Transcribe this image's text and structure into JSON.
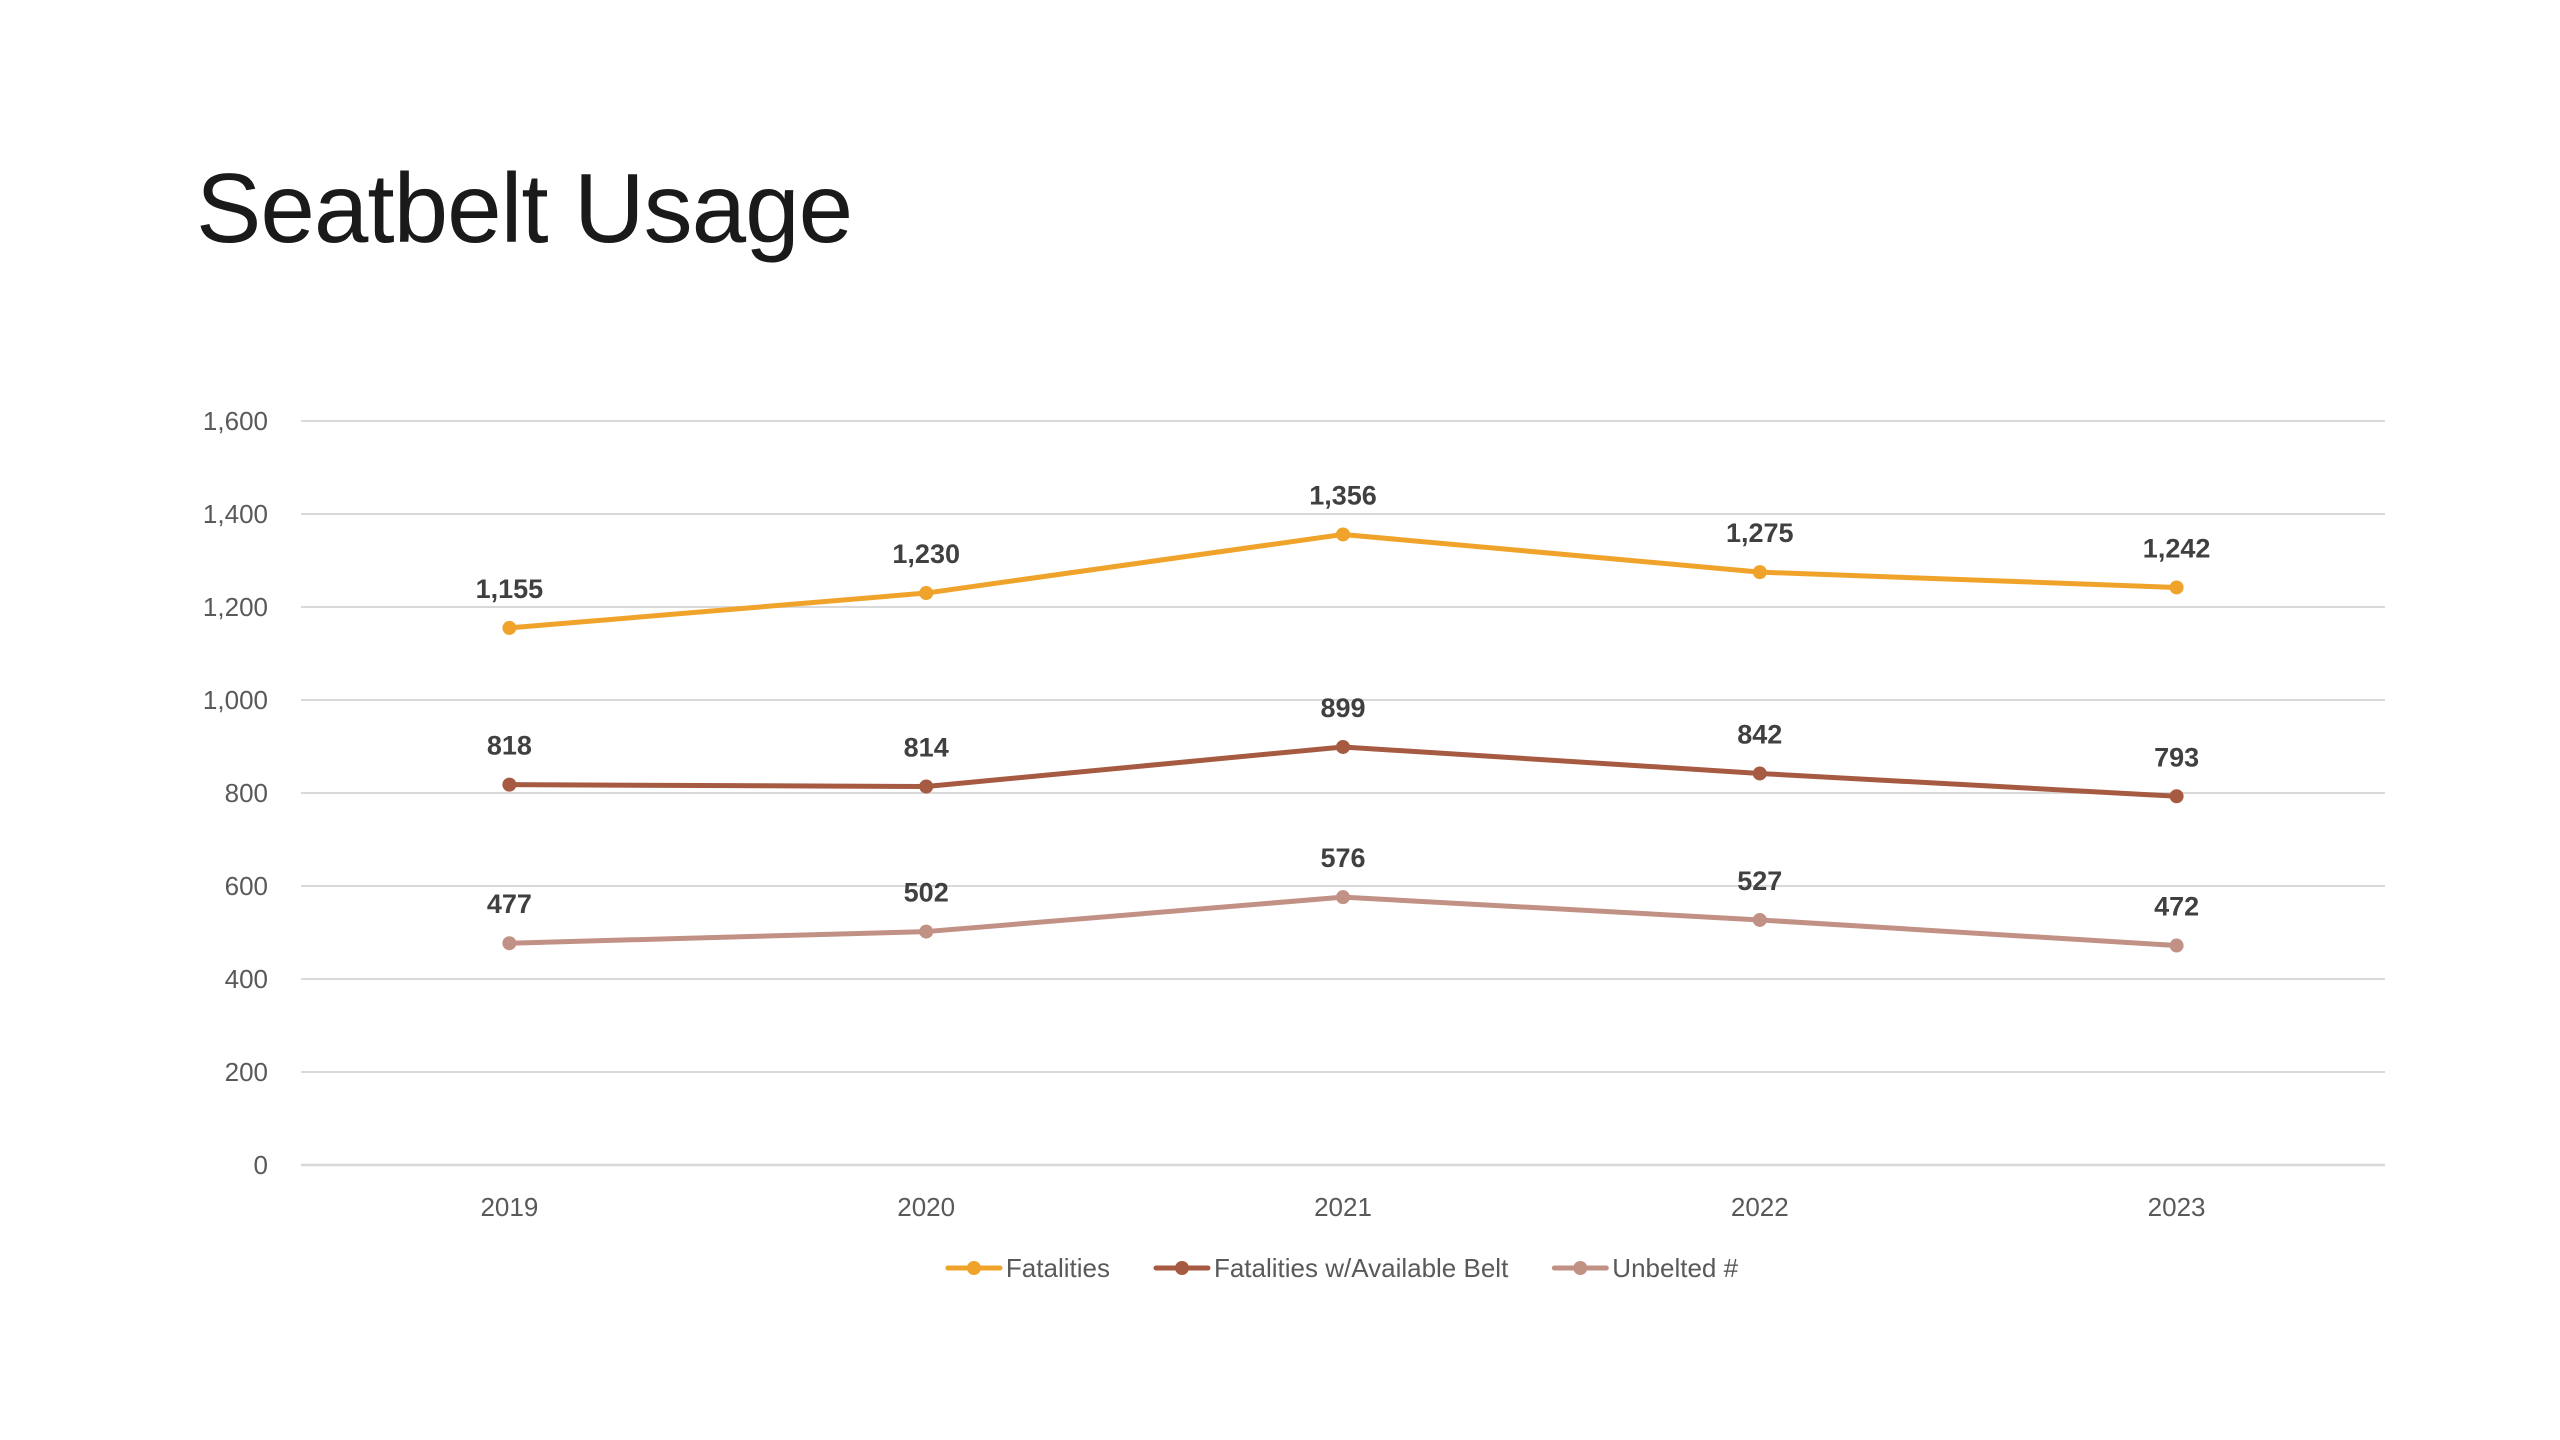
{
  "page": {
    "title": "Seatbelt Usage"
  },
  "chart_data": {
    "type": "line",
    "title": "",
    "xlabel": "",
    "ylabel": "",
    "categories": [
      "2019",
      "2020",
      "2021",
      "2022",
      "2023"
    ],
    "ylim": [
      0,
      1600
    ],
    "yticks": [
      0,
      200,
      400,
      600,
      800,
      1000,
      1200,
      1400,
      1600
    ],
    "ytick_labels": [
      "0",
      "200",
      "400",
      "600",
      "800",
      "1,000",
      "1,200",
      "1,400",
      "1,600"
    ],
    "grid": true,
    "legend_position": "bottom",
    "series": [
      {
        "name": "Fatalities",
        "color": "#F0A32A",
        "values": [
          1155,
          1230,
          1356,
          1275,
          1242
        ],
        "labels": [
          "1,155",
          "1,230",
          "1,356",
          "1,275",
          "1,242"
        ]
      },
      {
        "name": "Fatalities w/Available Belt",
        "color": "#A65A42",
        "values": [
          818,
          814,
          899,
          842,
          793
        ],
        "labels": [
          "818",
          "814",
          "899",
          "842",
          "793"
        ]
      },
      {
        "name": "Unbelted #",
        "color": "#C29186",
        "values": [
          477,
          502,
          576,
          527,
          472
        ],
        "labels": [
          "477",
          "502",
          "576",
          "527",
          "472"
        ]
      }
    ],
    "colors": {
      "grid": "#D9D9D9",
      "tick_text": "#595959",
      "data_label": "#404040"
    }
  }
}
